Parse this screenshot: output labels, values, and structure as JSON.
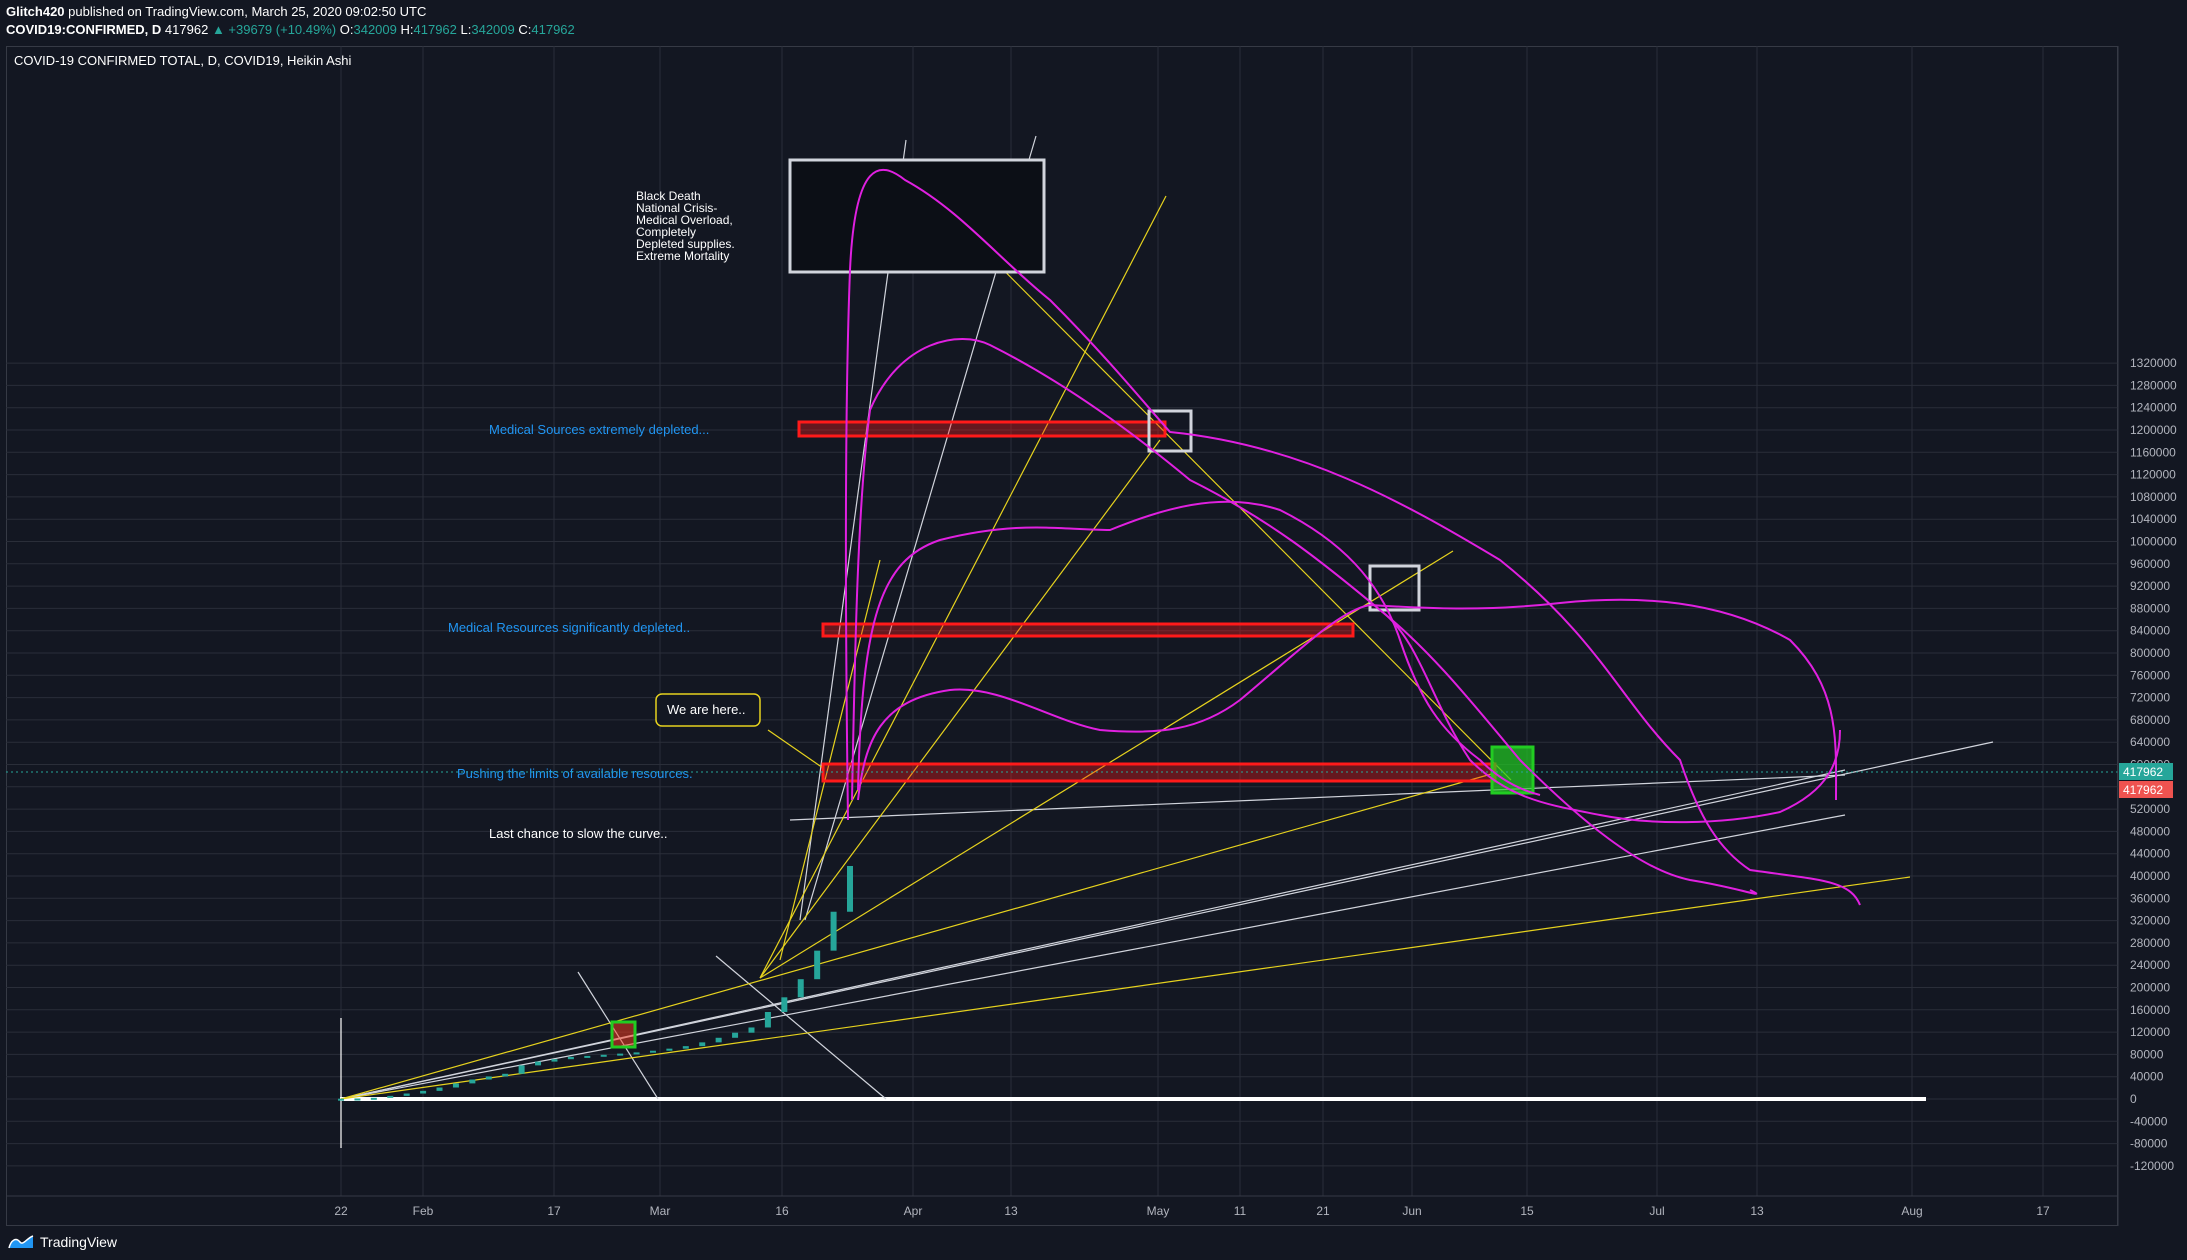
{
  "header": {
    "author": "Glitch420",
    "published_text": "published on TradingView.com, March 25, 2020 09:02:50 UTC",
    "symbol": "COVID19:CONFIRMED, D",
    "last": "417962",
    "change": "▲ +39679 (+10.49%)",
    "o_label": "O:",
    "o_value": "342009",
    "h_label": "H:",
    "h_value": "417962",
    "l_label": "L:",
    "l_value": "342009",
    "c_label": "C:",
    "c_value": "417962"
  },
  "legend_title": "COVID-19 CONFIRMED TOTAL, D, COVID19, Heikin Ashi",
  "footer": {
    "brand": "TradingView",
    "logo_icon": "tradingview-logo-icon"
  },
  "colors": {
    "background": "#131722",
    "grid": "#2a2e39",
    "candle_up": "#26a69a",
    "yellow": "#e6d21e",
    "white_line": "#d1d4dc",
    "magenta": "#e020e0",
    "red_zone": "#ff1a1a",
    "green_box": "#22cc22",
    "label_teal": "#26a69a",
    "label_red": "#ef5350"
  },
  "chart_data": {
    "type": "candlestick",
    "style": "Heikin Ashi",
    "title": "COVID-19 CONFIRMED TOTAL, D, COVID19, Heikin Ashi",
    "x_tick_labels": [
      "22",
      "Feb",
      "17",
      "Mar",
      "16",
      "Apr",
      "13",
      "May",
      "11",
      "21",
      "Jun",
      "15",
      "Jul",
      "13",
      "Aug",
      "17"
    ],
    "y_tick_labels": [
      "1320000",
      "1280000",
      "1240000",
      "1200000",
      "1160000",
      "1120000",
      "1080000",
      "1040000",
      "1000000",
      "960000",
      "920000",
      "880000",
      "840000",
      "800000",
      "760000",
      "720000",
      "680000",
      "640000",
      "600000",
      "560000",
      "520000",
      "480000",
      "440000",
      "400000",
      "360000",
      "320000",
      "280000",
      "240000",
      "200000",
      "160000",
      "120000",
      "80000",
      "40000",
      "0",
      "-40000",
      "-80000",
      "-120000"
    ],
    "ylim": [
      -120000,
      1320000
    ],
    "grid": true,
    "last_price_labels": [
      "417962",
      "417962"
    ],
    "series": [
      {
        "name": "",
        "x": [
          "Jan 22",
          "Jan 24",
          "Jan 26",
          "Jan 28",
          "Jan 30",
          "Feb 1",
          "Feb 3",
          "Feb 5",
          "Feb 7",
          "Feb 9",
          "Feb 11",
          "Feb 13",
          "Feb 15",
          "Feb 17",
          "Feb 19",
          "Feb 21",
          "Feb 23",
          "Feb 25",
          "Feb 27",
          "Feb 29",
          "Mar 2",
          "Mar 4",
          "Mar 6",
          "Mar 8",
          "Mar 10",
          "Mar 12",
          "Mar 14",
          "Mar 16",
          "Mar 18",
          "Mar 20",
          "Mar 22",
          "Mar 24"
        ],
        "values": [
          555,
          900,
          2100,
          5600,
          9800,
          14600,
          20600,
          28000,
          34900,
          40500,
          45200,
          60300,
          67100,
          71400,
          75600,
          77300,
          79300,
          81400,
          83600,
          86600,
          90300,
          94800,
          101600,
          109800,
          118900,
          128300,
          156100,
          182400,
          214900,
          266100,
          335900,
          417962
        ]
      }
    ],
    "annotations": [
      "Black Death",
      "National Crisis-",
      "Medical Overload,",
      "Completely",
      "Depleted supplies.",
      "Extreme Mortality",
      "Medical Sources extremely depleted...",
      "Medical Resources significantly depleted..",
      "We are here..",
      "Pushing the limits of available resources.",
      "Last chance to slow the curve.."
    ]
  }
}
